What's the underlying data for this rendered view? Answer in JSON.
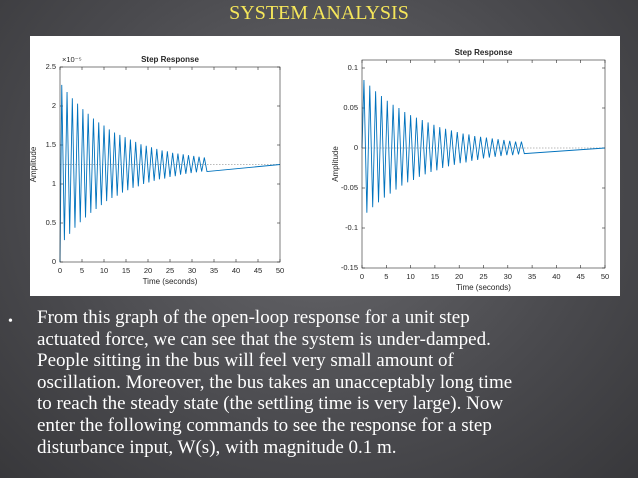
{
  "slide": {
    "title": "SYSTEM ANALYSIS",
    "bullet": "•",
    "lines": [
      "From this graph of the open-loop response for a unit step",
      "actuated force, we can see that the system is under-damped.",
      "People sitting in the bus will feel very small amount of",
      "oscillation. Moreover, the bus takes an unacceptably long time",
      "to reach the steady state (the settling time is very large). Now",
      "enter the following commands to see the response for a step",
      "disturbance input, W(s), with magnitude 0.1 m."
    ]
  },
  "chart_data": [
    {
      "type": "line",
      "title": "Step Response",
      "x_label": "Time (seconds)",
      "y_label": "Amplitude",
      "y_multiplier": "×10⁻⁵",
      "xlim": [
        0,
        50
      ],
      "ylim": [
        0,
        2.5
      ],
      "xticks": [
        0,
        5,
        10,
        15,
        20,
        25,
        30,
        35,
        40,
        45,
        50
      ],
      "yticks": [
        0,
        0.5,
        1,
        1.5,
        2,
        2.5
      ],
      "ref_line": 1.25,
      "series": [
        {
          "color": "#0072bd",
          "x": [
            0,
            0.4,
            1,
            1.6,
            2.2,
            2.8,
            3.4,
            4,
            4.6,
            5.2,
            5.8,
            6.4,
            7,
            7.6,
            8.2,
            8.8,
            9.4,
            10,
            10.6,
            11.2,
            11.8,
            12.4,
            13,
            13.6,
            14.2,
            14.8,
            15.4,
            16,
            16.6,
            17.2,
            17.8,
            18.4,
            19,
            19.6,
            20.2,
            20.8,
            21.4,
            22,
            22.6,
            23.2,
            23.8,
            24.4,
            25,
            25.6,
            26.2,
            26.8,
            27.4,
            28,
            28.6,
            29.2,
            29.8,
            30.4,
            31,
            31.6,
            32.2,
            32.8,
            33.4,
            50
          ],
          "values": [
            0,
            2.27,
            0.28,
            2.18,
            0.36,
            2.1,
            0.44,
            2.03,
            0.51,
            1.96,
            0.57,
            1.9,
            0.63,
            1.84,
            0.68,
            1.79,
            0.73,
            1.75,
            0.78,
            1.7,
            0.82,
            1.66,
            0.85,
            1.63,
            0.89,
            1.6,
            0.92,
            1.57,
            0.95,
            1.54,
            0.97,
            1.51,
            1,
            1.49,
            1.02,
            1.47,
            1.04,
            1.45,
            1.06,
            1.43,
            1.07,
            1.42,
            1.09,
            1.4,
            1.1,
            1.39,
            1.12,
            1.38,
            1.13,
            1.37,
            1.14,
            1.36,
            1.15,
            1.35,
            1.16,
            1.34,
            1.16,
            1.25
          ]
        }
      ]
    },
    {
      "type": "line",
      "title": "Step Response",
      "x_label": "Time (seconds)",
      "y_label": "Amplitude",
      "xlim": [
        0,
        50
      ],
      "ylim": [
        -0.15,
        0.11
      ],
      "xticks": [
        0,
        5,
        10,
        15,
        20,
        25,
        30,
        35,
        40,
        45,
        50
      ],
      "yticks": [
        -0.15,
        -0.1,
        -0.05,
        0,
        0.05,
        0.1
      ],
      "ref_line": 0,
      "series": [
        {
          "color": "#0072bd",
          "x": [
            0,
            0.4,
            1,
            1.6,
            2.2,
            2.8,
            3.4,
            4,
            4.6,
            5.2,
            5.8,
            6.4,
            7,
            7.6,
            8.2,
            8.8,
            9.4,
            10,
            10.6,
            11.2,
            11.8,
            12.4,
            13,
            13.6,
            14.2,
            14.8,
            15.4,
            16,
            16.6,
            17.2,
            17.8,
            18.4,
            19,
            19.6,
            20.2,
            20.8,
            21.4,
            22,
            22.6,
            23.2,
            23.8,
            24.4,
            25,
            25.6,
            26.2,
            26.8,
            27.4,
            28,
            28.6,
            29.2,
            29.8,
            30.4,
            31,
            31.6,
            32.2,
            32.8,
            33.4,
            50
          ],
          "values": [
            0,
            0.085,
            -0.081,
            0.078,
            -0.074,
            0.071,
            -0.068,
            0.065,
            -0.062,
            0.059,
            -0.057,
            0.054,
            -0.052,
            0.05,
            -0.047,
            0.045,
            -0.043,
            0.041,
            -0.04,
            0.038,
            -0.036,
            0.035,
            -0.033,
            0.032,
            -0.03,
            0.029,
            -0.028,
            0.026,
            -0.025,
            0.024,
            -0.023,
            0.022,
            -0.021,
            0.02,
            -0.019,
            0.018,
            -0.018,
            0.017,
            -0.016,
            0.015,
            -0.015,
            0.014,
            -0.013,
            0.013,
            -0.012,
            0.012,
            -0.011,
            0.011,
            -0.01,
            0.01,
            -0.009,
            0.009,
            -0.009,
            0.008,
            -0.008,
            0.008,
            -0.007,
            0
          ]
        }
      ]
    }
  ]
}
